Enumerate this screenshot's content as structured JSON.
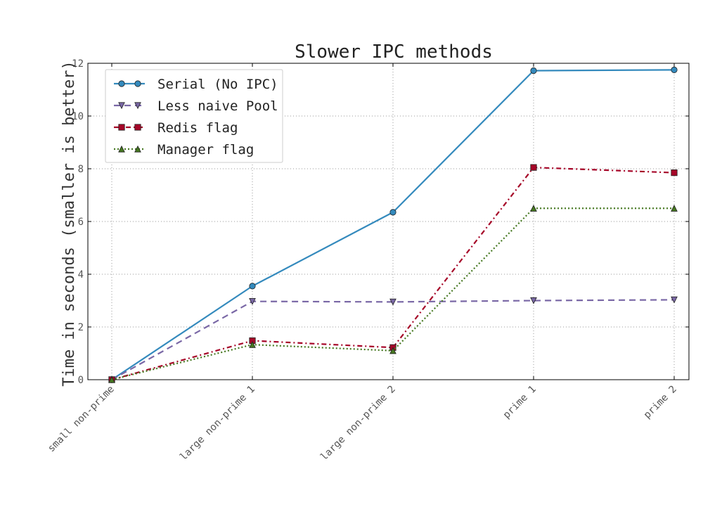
{
  "chart_data": {
    "type": "line",
    "title": "Slower IPC methods",
    "xlabel": "",
    "ylabel": "Time in seconds (smaller is better)",
    "categories": [
      "small non-prime",
      "large non-prime 1",
      "large non-prime 2",
      "prime 1",
      "prime 2"
    ],
    "ylim": [
      0,
      12
    ],
    "yticks": [
      0,
      2,
      4,
      6,
      8,
      10,
      12
    ],
    "grid": true,
    "legend_position": "upper-left",
    "series": [
      {
        "name": "Serial (No IPC)",
        "values": [
          0.0,
          3.55,
          6.35,
          11.72,
          11.75
        ],
        "color": "#348abd",
        "dash": "solid",
        "marker": "circle"
      },
      {
        "name": "Less naive Pool",
        "values": [
          0.0,
          2.97,
          2.95,
          3.0,
          3.03
        ],
        "color": "#7a68a6",
        "dash": "dashed",
        "marker": "triangle-down"
      },
      {
        "name": "Redis flag",
        "values": [
          0.0,
          1.48,
          1.22,
          8.05,
          7.85
        ],
        "color": "#a60628",
        "dash": "dashdot",
        "marker": "square"
      },
      {
        "name": "Manager flag",
        "values": [
          0.0,
          1.33,
          1.1,
          6.5,
          6.5
        ],
        "color": "#467821",
        "dash": "dotted",
        "marker": "triangle-up"
      }
    ]
  }
}
